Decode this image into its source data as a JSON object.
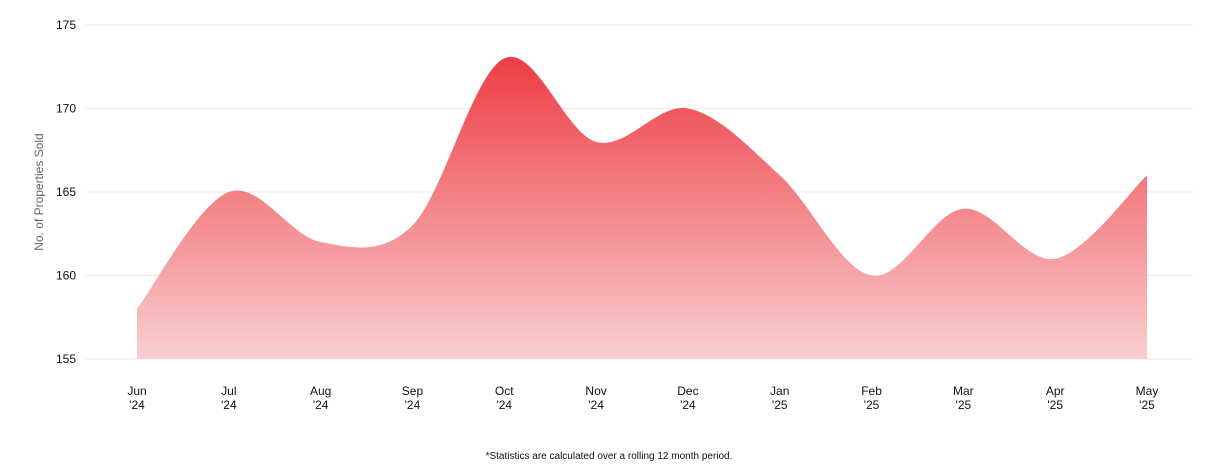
{
  "chart_data": {
    "type": "area",
    "categories": [
      [
        "Jun",
        "'24"
      ],
      [
        "Jul",
        "'24"
      ],
      [
        "Aug",
        "'24"
      ],
      [
        "Sep",
        "'24"
      ],
      [
        "Oct",
        "'24"
      ],
      [
        "Nov",
        "'24"
      ],
      [
        "Dec",
        "'24"
      ],
      [
        "Jan",
        "'25"
      ],
      [
        "Feb",
        "'25"
      ],
      [
        "Mar",
        "'25"
      ],
      [
        "Apr",
        "'25"
      ],
      [
        "May",
        "'25"
      ]
    ],
    "values": [
      158,
      165,
      162,
      163,
      173,
      168,
      170,
      166,
      160,
      164,
      161,
      166
    ],
    "ylabel": "No. of Properties Sold",
    "ylim": [
      155,
      175
    ],
    "yticks": [
      155,
      160,
      165,
      170,
      175
    ],
    "grid": true,
    "colors": {
      "fill_top": "#ee3d43",
      "fill_bottom": "#f8cfd1",
      "grid": "#ebebeb"
    }
  },
  "footnote": "*Statistics are calculated over a rolling 12 month period."
}
